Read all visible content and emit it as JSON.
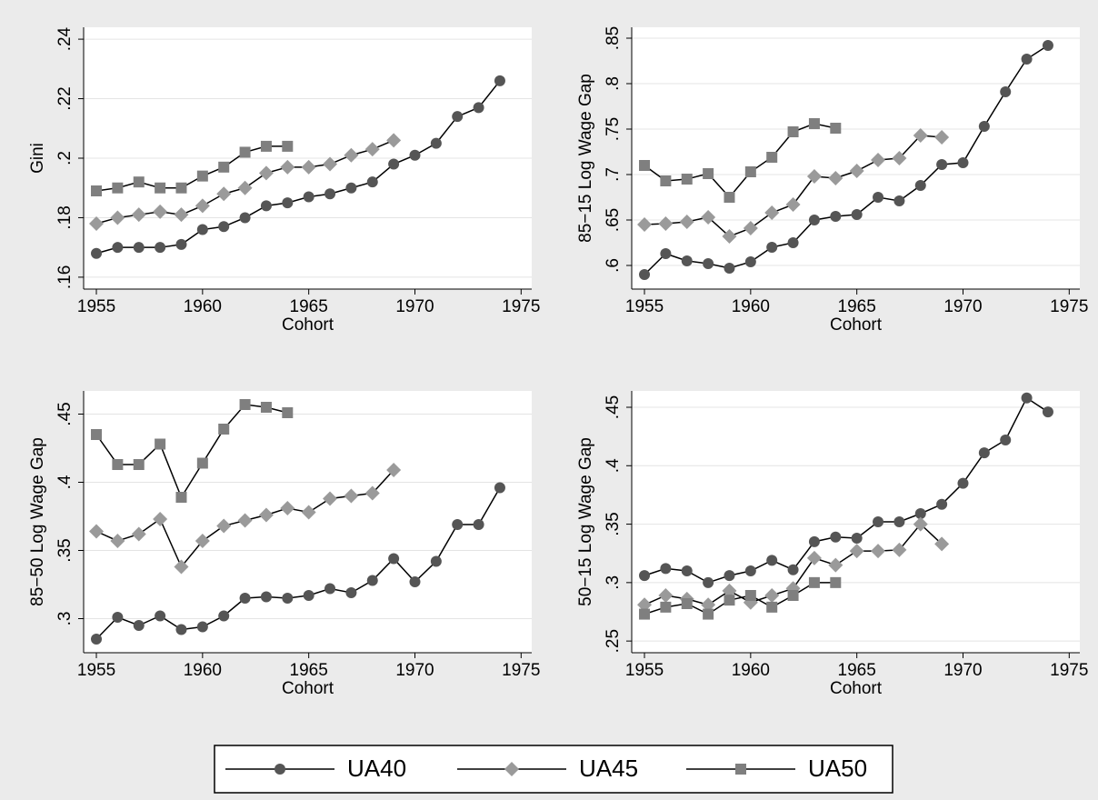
{
  "chart_data": [
    {
      "type": "line",
      "ylabel": "Gini",
      "xlabel": "Cohort",
      "x": [
        1955,
        1956,
        1957,
        1958,
        1959,
        1960,
        1961,
        1962,
        1963,
        1964,
        1965,
        1966,
        1967,
        1968,
        1969,
        1970,
        1971,
        1972,
        1973,
        1974
      ],
      "xlim": [
        1954.4,
        1975.5
      ],
      "xticks": [
        1955,
        1960,
        1965,
        1970,
        1975
      ],
      "ylim": [
        0.156,
        0.244
      ],
      "yticks": [
        {
          "value": 0.16,
          "label": ".16"
        },
        {
          "value": 0.18,
          "label": ".18"
        },
        {
          "value": 0.2,
          "label": ".2"
        },
        {
          "value": 0.22,
          "label": ".22"
        },
        {
          "value": 0.24,
          "label": ".24"
        }
      ],
      "grid": true,
      "series": [
        {
          "name": "UA40",
          "color": "#555555",
          "marker": "circle",
          "values": [
            0.168,
            0.17,
            0.17,
            0.17,
            0.171,
            0.176,
            0.177,
            0.18,
            0.184,
            0.185,
            0.187,
            0.188,
            0.19,
            0.192,
            0.198,
            0.201,
            0.205,
            0.214,
            0.217,
            0.226
          ]
        },
        {
          "name": "UA45",
          "color": "#9a9a9a",
          "marker": "diamond",
          "values": [
            0.178,
            0.18,
            0.181,
            0.182,
            0.181,
            0.184,
            0.188,
            0.19,
            0.195,
            0.197,
            0.197,
            0.198,
            0.201,
            0.203,
            0.206,
            null,
            null,
            null,
            null,
            null
          ]
        },
        {
          "name": "UA50",
          "color": "#7f7f7f",
          "marker": "square",
          "values": [
            0.189,
            0.19,
            0.192,
            0.19,
            0.19,
            0.194,
            0.197,
            0.202,
            0.204,
            0.204,
            null,
            null,
            null,
            null,
            null,
            null,
            null,
            null,
            null,
            null
          ]
        }
      ]
    },
    {
      "type": "line",
      "ylabel": "85−15 Log Wage Gap",
      "xlabel": "Cohort",
      "x": [
        1955,
        1956,
        1957,
        1958,
        1959,
        1960,
        1961,
        1962,
        1963,
        1964,
        1965,
        1966,
        1967,
        1968,
        1969,
        1970,
        1971,
        1972,
        1973,
        1974
      ],
      "xlim": [
        1954.4,
        1975.5
      ],
      "xticks": [
        1955,
        1960,
        1965,
        1970,
        1975
      ],
      "ylim": [
        0.574,
        0.862
      ],
      "yticks": [
        {
          "value": 0.6,
          "label": ".6"
        },
        {
          "value": 0.65,
          "label": ".65"
        },
        {
          "value": 0.7,
          "label": ".7"
        },
        {
          "value": 0.75,
          "label": ".75"
        },
        {
          "value": 0.8,
          "label": ".8"
        },
        {
          "value": 0.85,
          "label": ".85"
        }
      ],
      "grid": true,
      "series": [
        {
          "name": "UA40",
          "color": "#555555",
          "marker": "circle",
          "values": [
            0.59,
            0.613,
            0.605,
            0.602,
            0.597,
            0.604,
            0.62,
            0.625,
            0.65,
            0.654,
            0.656,
            0.675,
            0.671,
            0.688,
            0.711,
            0.713,
            0.753,
            0.791,
            0.827,
            0.842
          ]
        },
        {
          "name": "UA45",
          "color": "#9a9a9a",
          "marker": "diamond",
          "values": [
            0.645,
            0.646,
            0.648,
            0.653,
            0.632,
            0.641,
            0.658,
            0.667,
            0.698,
            0.696,
            0.704,
            0.716,
            0.718,
            0.743,
            0.741,
            null,
            null,
            null,
            null,
            null
          ]
        },
        {
          "name": "UA50",
          "color": "#7f7f7f",
          "marker": "square",
          "values": [
            0.71,
            0.693,
            0.695,
            0.701,
            0.675,
            0.703,
            0.719,
            0.747,
            0.756,
            0.751,
            null,
            null,
            null,
            null,
            null,
            null,
            null,
            null,
            null,
            null
          ]
        }
      ]
    },
    {
      "type": "line",
      "ylabel": "85−50 Log Wage Gap",
      "xlabel": "Cohort",
      "x": [
        1955,
        1956,
        1957,
        1958,
        1959,
        1960,
        1961,
        1962,
        1963,
        1964,
        1965,
        1966,
        1967,
        1968,
        1969,
        1970,
        1971,
        1972,
        1973,
        1974
      ],
      "xlim": [
        1954.4,
        1975.5
      ],
      "xticks": [
        1955,
        1960,
        1965,
        1970,
        1975
      ],
      "ylim": [
        0.275,
        0.467
      ],
      "yticks": [
        {
          "value": 0.3,
          "label": ".3"
        },
        {
          "value": 0.35,
          "label": ".35"
        },
        {
          "value": 0.4,
          "label": ".4"
        },
        {
          "value": 0.45,
          "label": ".45"
        }
      ],
      "grid": true,
      "series": [
        {
          "name": "UA40",
          "color": "#555555",
          "marker": "circle",
          "values": [
            0.285,
            0.301,
            0.295,
            0.302,
            0.292,
            0.294,
            0.302,
            0.315,
            0.316,
            0.315,
            0.317,
            0.322,
            0.319,
            0.328,
            0.344,
            0.327,
            0.342,
            0.369,
            0.369,
            0.396
          ]
        },
        {
          "name": "UA45",
          "color": "#9a9a9a",
          "marker": "diamond",
          "values": [
            0.364,
            0.357,
            0.362,
            0.373,
            0.338,
            0.357,
            0.368,
            0.372,
            0.376,
            0.381,
            0.378,
            0.388,
            0.39,
            0.392,
            0.409,
            null,
            null,
            null,
            null,
            null
          ]
        },
        {
          "name": "UA50",
          "color": "#7f7f7f",
          "marker": "square",
          "values": [
            0.435,
            0.413,
            0.413,
            0.428,
            0.389,
            0.414,
            0.439,
            0.457,
            0.455,
            0.451,
            null,
            null,
            null,
            null,
            null,
            null,
            null,
            null,
            null,
            null
          ]
        }
      ]
    },
    {
      "type": "line",
      "ylabel": "50−15 Log Wage Gap",
      "xlabel": "Cohort",
      "x": [
        1955,
        1956,
        1957,
        1958,
        1959,
        1960,
        1961,
        1962,
        1963,
        1964,
        1965,
        1966,
        1967,
        1968,
        1969,
        1970,
        1971,
        1972,
        1973,
        1974
      ],
      "xlim": [
        1954.4,
        1975.5
      ],
      "xticks": [
        1955,
        1960,
        1965,
        1970,
        1975
      ],
      "ylim": [
        0.24,
        0.464
      ],
      "yticks": [
        {
          "value": 0.25,
          "label": ".25"
        },
        {
          "value": 0.3,
          "label": ".3"
        },
        {
          "value": 0.35,
          "label": ".35"
        },
        {
          "value": 0.4,
          "label": ".4"
        },
        {
          "value": 0.45,
          "label": ".45"
        }
      ],
      "grid": true,
      "series": [
        {
          "name": "UA40",
          "color": "#555555",
          "marker": "circle",
          "values": [
            0.306,
            0.312,
            0.31,
            0.3,
            0.306,
            0.31,
            0.319,
            0.311,
            0.335,
            0.339,
            0.338,
            0.352,
            0.352,
            0.359,
            0.367,
            0.385,
            0.411,
            0.422,
            0.458,
            0.446
          ]
        },
        {
          "name": "UA45",
          "color": "#9a9a9a",
          "marker": "diamond",
          "values": [
            0.281,
            0.289,
            0.286,
            0.281,
            0.293,
            0.283,
            0.289,
            0.295,
            0.321,
            0.315,
            0.327,
            0.327,
            0.328,
            0.35,
            0.333,
            null,
            null,
            null,
            null,
            null
          ]
        },
        {
          "name": "UA50",
          "color": "#7f7f7f",
          "marker": "square",
          "values": [
            0.273,
            0.279,
            0.282,
            0.273,
            0.285,
            0.289,
            0.279,
            0.289,
            0.3,
            0.3,
            null,
            null,
            null,
            null,
            null,
            null,
            null,
            null,
            null,
            null
          ]
        }
      ]
    }
  ]
}
